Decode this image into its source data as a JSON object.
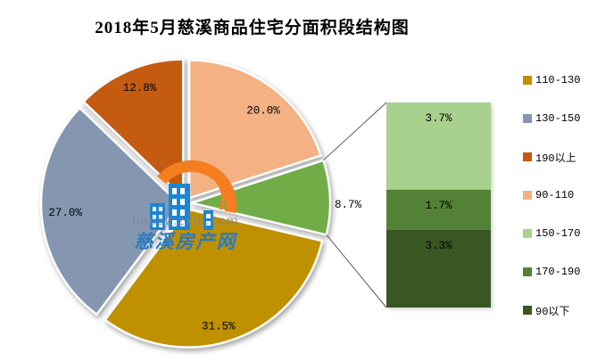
{
  "title": "2018年5月慈溪商品住宅分面积段结构图",
  "chart_data": {
    "type": "pie",
    "subtype": "pie-of-pie",
    "title": "2018年5月慈溪商品住宅分面积段结构图",
    "unit": "%",
    "legend_position": "right",
    "pie": {
      "slices": [
        {
          "label": "90-110",
          "value": 20.0,
          "display": "20.0%",
          "color": "#F4B183"
        },
        {
          "label": "",
          "value": 8.7,
          "display": "8.7%",
          "color": "#70AD47",
          "is_breakout_group": true
        },
        {
          "label": "110-130",
          "value": 31.5,
          "display": "31.5%",
          "color": "#BF9000"
        },
        {
          "label": "130-150",
          "value": 27.0,
          "display": "27.0%",
          "color": "#8496B0"
        },
        {
          "label": "190以上",
          "value": 12.8,
          "display": "12.8%",
          "color": "#C55A11"
        }
      ]
    },
    "breakout_bar": {
      "segments": [
        {
          "label": "150-170",
          "value": 3.7,
          "display": "3.7%",
          "color": "#A9D18E"
        },
        {
          "label": "170-190",
          "value": 1.7,
          "display": "1.7%",
          "color": "#538135"
        },
        {
          "label": "90以下",
          "value": 3.3,
          "display": "3.3%",
          "color": "#385723"
        }
      ]
    },
    "legend": {
      "items": [
        {
          "label": "110-130",
          "color": "#BF9000"
        },
        {
          "label": "130-150",
          "color": "#8496B0"
        },
        {
          "label": "190以上",
          "color": "#C55A11"
        },
        {
          "label": "90-110",
          "color": "#F4B183"
        },
        {
          "label": "150-170",
          "color": "#A9D18E"
        },
        {
          "label": "170-190",
          "color": "#538135"
        },
        {
          "label": "90以下",
          "color": "#385723"
        }
      ]
    }
  },
  "watermark": {
    "url_text": "house.zxip.com",
    "site_name": "慈溪房产网",
    "logo_orange": "#F57E20",
    "logo_blue": "#1D86D2"
  }
}
